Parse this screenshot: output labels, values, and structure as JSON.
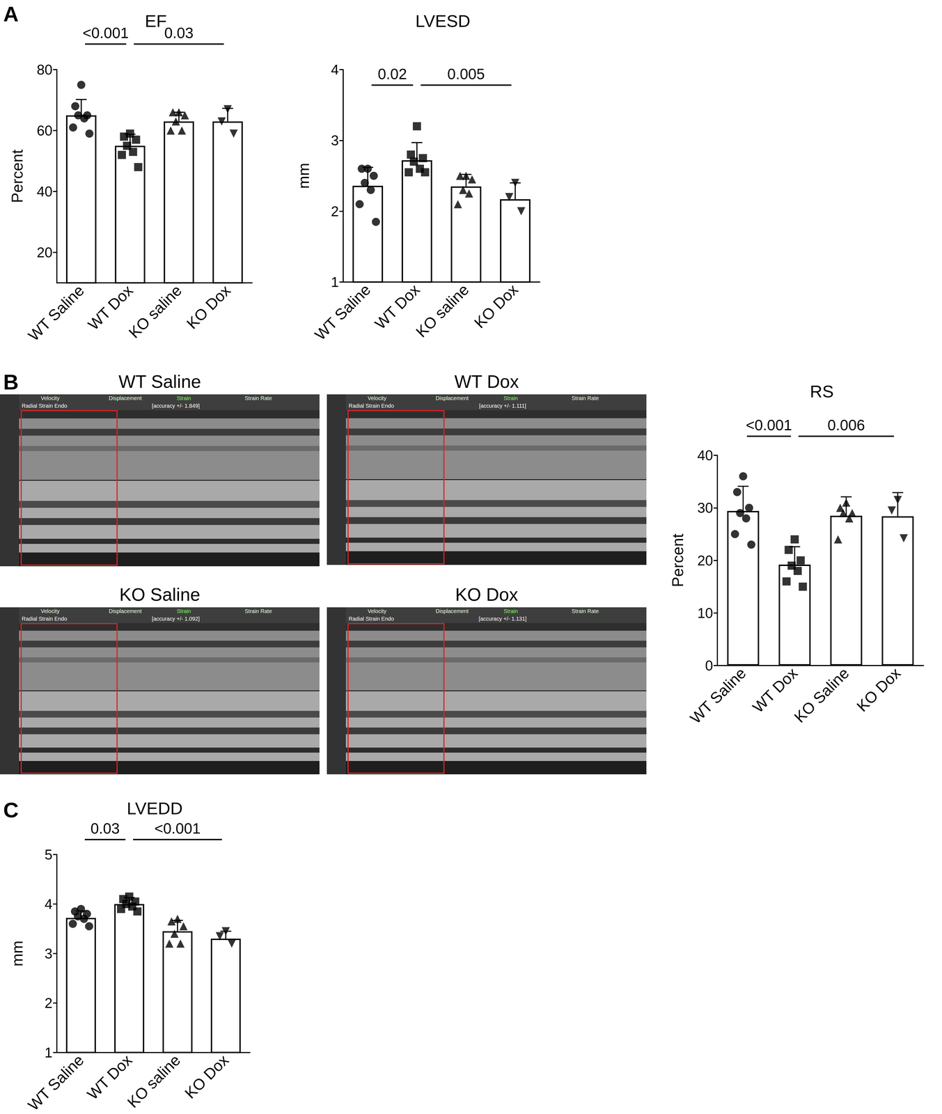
{
  "chart_data": [
    {
      "type": "bar",
      "title": "EF",
      "y_label": "Percent",
      "categories": [
        "WT Saline",
        "WT Dox",
        "KO saline",
        "KO Dox"
      ],
      "values": [
        65,
        55,
        63,
        63
      ],
      "sd": [
        5.2,
        3.8,
        3.0,
        4.3
      ],
      "points": [
        {
          "marker": "circle",
          "values": [
            75,
            68,
            65,
            65,
            64,
            61,
            59
          ]
        },
        {
          "marker": "square",
          "values": [
            59,
            58,
            57,
            55,
            53,
            52,
            48
          ]
        },
        {
          "marker": "triangle",
          "values": [
            66,
            66,
            65,
            63,
            60,
            60
          ]
        },
        {
          "marker": "triangle-down",
          "values": [
            67,
            63,
            59
          ]
        }
      ],
      "ylim": [
        10,
        80
      ],
      "yticks": [
        20,
        40,
        60,
        80
      ],
      "grid": false,
      "annotations": [
        {
          "from": 0,
          "to": 1,
          "label": "<0.001"
        },
        {
          "from": 1,
          "to": 3,
          "label": "0.03"
        }
      ]
    },
    {
      "type": "bar",
      "title": "LVESD",
      "y_label": "mm",
      "categories": [
        "WT Saline",
        "WT Dox",
        "KO saline",
        "KO Dox"
      ],
      "values": [
        2.36,
        2.72,
        2.35,
        2.17
      ],
      "sd": [
        0.26,
        0.25,
        0.17,
        0.23
      ],
      "points": [
        {
          "marker": "circle",
          "values": [
            2.6,
            2.6,
            2.5,
            2.4,
            2.3,
            2.1,
            1.85
          ]
        },
        {
          "marker": "square",
          "values": [
            3.2,
            2.8,
            2.75,
            2.7,
            2.6,
            2.55,
            2.55
          ]
        },
        {
          "marker": "triangle",
          "values": [
            2.5,
            2.5,
            2.45,
            2.3,
            2.25,
            2.1
          ]
        },
        {
          "marker": "triangle-down",
          "values": [
            2.4,
            2.2,
            2.0
          ]
        }
      ],
      "ylim": [
        1,
        4
      ],
      "yticks": [
        1,
        2,
        3,
        4
      ],
      "grid": false,
      "annotations": [
        {
          "from": 0,
          "to": 1,
          "label": "0.02"
        },
        {
          "from": 1,
          "to": 3,
          "label": "0.005"
        }
      ]
    },
    {
      "type": "bar",
      "title": "RS",
      "y_label": "Percent",
      "categories": [
        "WT Saline",
        "WT Dox",
        "KO Saline",
        "KO Dox"
      ],
      "values": [
        29.4,
        19.2,
        28.5,
        28.4
      ],
      "sd": [
        4.7,
        3.4,
        3.6,
        4.5
      ],
      "points": [
        {
          "marker": "circle",
          "values": [
            36,
            33,
            30,
            29,
            28,
            25,
            23
          ]
        },
        {
          "marker": "square",
          "values": [
            24,
            22,
            20,
            19,
            18,
            16,
            15
          ]
        },
        {
          "marker": "triangle",
          "values": [
            31,
            30,
            29,
            29,
            28,
            24
          ]
        },
        {
          "marker": "triangle-down",
          "values": [
            31.5,
            29.5,
            24.2
          ]
        }
      ],
      "ylim": [
        0,
        40
      ],
      "yticks": [
        0,
        10,
        20,
        30,
        40
      ],
      "grid": false,
      "annotations": [
        {
          "from": 0,
          "to": 1,
          "label": "<0.001"
        },
        {
          "from": 1,
          "to": 3,
          "label": "0.006"
        }
      ]
    },
    {
      "type": "bar",
      "title": "LVEDD",
      "y_label": "mm",
      "categories": [
        "WT Saline",
        "WT Dox",
        "KO saline",
        "KO Dox"
      ],
      "values": [
        3.72,
        4.0,
        3.45,
        3.3
      ],
      "sd": [
        0.14,
        0.13,
        0.22,
        0.15
      ],
      "points": [
        {
          "marker": "circle",
          "values": [
            3.9,
            3.85,
            3.8,
            3.75,
            3.7,
            3.6,
            3.55
          ]
        },
        {
          "marker": "square",
          "values": [
            4.15,
            4.1,
            4.05,
            4.0,
            3.95,
            3.9,
            3.85
          ]
        },
        {
          "marker": "triangle",
          "values": [
            3.7,
            3.65,
            3.55,
            3.4,
            3.2,
            3.2
          ]
        },
        {
          "marker": "triangle-down",
          "values": [
            3.45,
            3.35,
            3.2
          ]
        }
      ],
      "ylim": [
        1,
        5
      ],
      "yticks": [
        1,
        2,
        3,
        4,
        5
      ],
      "grid": false,
      "annotations": [
        {
          "from": 0,
          "to": 1,
          "label": "0.03"
        },
        {
          "from": 1,
          "to": 3,
          "label": "<0.001"
        }
      ]
    }
  ],
  "panel_labels": [
    "A",
    "B",
    "C"
  ],
  "images": [
    {
      "title": "WT Saline",
      "header": [
        "Velocity",
        "Displacement",
        "Strain",
        "Strain Rate"
      ],
      "trace": "Radial Strain Endo",
      "accuracy": "[accuracy +/- 1.849]"
    },
    {
      "title": "WT Dox",
      "header": [
        "Velocity",
        "Displacement",
        "Strain",
        "Strain Rate"
      ],
      "trace": "Radial Strain Endo",
      "accuracy": "[accuracy +/- 1.111]"
    },
    {
      "title": "KO Saline",
      "header": [
        "Velocity",
        "Displacement",
        "Strain",
        "Strain Rate"
      ],
      "trace": "Radial Strain Endo",
      "accuracy": "[accuracy +/- 1.092]"
    },
    {
      "title": "KO Dox",
      "header": [
        "Velocity",
        "Displacement",
        "Strain",
        "Strain Rate"
      ],
      "trace": "Radial Strain Endo",
      "accuracy": "[accuracy +/- 1.131]"
    }
  ]
}
